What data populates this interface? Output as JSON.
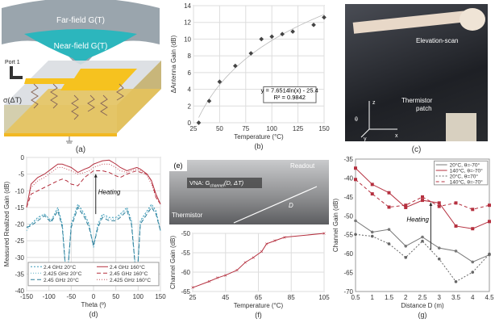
{
  "panel_a": {
    "far_field": "Far-field G(T)",
    "near_field": "Near-field G(T)",
    "port": "Port 1",
    "sigma": "σ(ΔT)",
    "caption": "(a)"
  },
  "panel_c": {
    "elevation": "Elevation-scan",
    "thermistor": "Thermistor",
    "patch": "patch",
    "axes": {
      "z": "z",
      "x": "x",
      "y": "y",
      "theta": "θ"
    },
    "caption": "(c)"
  },
  "panel_e": {
    "label": "(e)",
    "vna": "VNA: G",
    "vna_sub": "channel",
    "vna_args": "(D, ΔT)",
    "readout": "Readout",
    "distance": "D",
    "thermistor": "Thermistor"
  },
  "chart_data": [
    {
      "id": "b",
      "type": "scatter",
      "caption": "(b)",
      "xlabel": "Temperature (°C)",
      "ylabel": "ΔAntenna Gain (dB)",
      "xlim": [
        25,
        150
      ],
      "ylim": [
        0,
        14
      ],
      "xticks": [
        25,
        50,
        75,
        100,
        125,
        150
      ],
      "yticks": [
        0,
        2,
        4,
        6,
        8,
        10,
        12,
        14
      ],
      "grid": true,
      "x": [
        30,
        40,
        50,
        65,
        80,
        90,
        100,
        110,
        120,
        140,
        150
      ],
      "y": [
        0,
        2.6,
        4.9,
        6.8,
        8.3,
        10.0,
        10.3,
        10.6,
        10.9,
        11.7,
        12.6
      ],
      "trendline": {
        "a": 7.6514,
        "b": -25.4,
        "equation": "y = 7.6514ln(x) - 25.4",
        "r2": "R² = 0.9842"
      }
    },
    {
      "id": "d",
      "type": "line",
      "caption": "(d)",
      "xlabel": "Theta (º)",
      "ylabel": "Measured Realized Gain (dB)",
      "xlim": [
        -150,
        150
      ],
      "ylim": [
        -40,
        0
      ],
      "xticks": [
        -150,
        -100,
        -50,
        0,
        50,
        100,
        150
      ],
      "yticks": [
        0,
        -5,
        -10,
        -15,
        -20,
        -25,
        -30,
        -35,
        -40
      ],
      "grid": true,
      "annotation": "Heating",
      "legend": "bottom",
      "x": [
        -150,
        -140,
        -125,
        -110,
        -95,
        -80,
        -70,
        -60,
        -50,
        -35,
        -20,
        -10,
        0,
        10,
        20,
        35,
        50,
        60,
        75,
        85,
        97,
        105,
        120,
        130,
        140,
        150
      ],
      "series": [
        {
          "name": "2.4 GHz 20°C",
          "color": "#3a9ab8",
          "dash": "2,2",
          "values": [
            -21,
            -20,
            -18,
            -17,
            -19,
            -15,
            -20,
            -38,
            -20,
            -14,
            -17,
            -20,
            -27,
            -20,
            -17,
            -18,
            -18,
            -17,
            -15,
            -19,
            -38,
            -19,
            -16,
            -14,
            -16,
            -22
          ]
        },
        {
          "name": "2.425 GHz 20°C",
          "color": "#5fb0c8",
          "dash": "1,2",
          "values": [
            -22,
            -20,
            -18.5,
            -17,
            -19,
            -15.5,
            -20.5,
            -38,
            -20.5,
            -14.5,
            -17.5,
            -20.5,
            -26,
            -20.5,
            -17.5,
            -18.5,
            -18.5,
            -17.5,
            -15.5,
            -19.5,
            -38,
            -19.5,
            -16.5,
            -14.5,
            -16.5,
            -22
          ]
        },
        {
          "name": "2.45 GHz 20°C",
          "color": "#2f7f9a",
          "dash": "5,3",
          "values": [
            -21,
            -20.5,
            -19,
            -17.5,
            -19.5,
            -16,
            -21,
            -38,
            -21,
            -15,
            -18,
            -21,
            -26.5,
            -21,
            -18,
            -19,
            -19,
            -18,
            -16,
            -20,
            -38,
            -20,
            -17,
            -15,
            -17,
            -22
          ]
        },
        {
          "name": "2.4 GHz 160°C",
          "color": "#b5303f",
          "dash": "",
          "values": [
            -15,
            -8,
            -6,
            -5,
            -3.5,
            -2,
            -2,
            -2.5,
            -3,
            -4.5,
            -3.5,
            -3,
            -2,
            -1.5,
            -1,
            -0.8,
            -2,
            -3,
            -4,
            -3.5,
            -3,
            -3.5,
            -5,
            -7,
            -11,
            -14
          ]
        },
        {
          "name": "2.45 GHz 160°C",
          "color": "#b5303f",
          "dash": "5,3",
          "values": [
            -15,
            -11,
            -10,
            -9,
            -8,
            -7,
            -6.5,
            -7,
            -8,
            -8.5,
            -6,
            -5,
            -4,
            -4,
            -4,
            -4.5,
            -5.5,
            -6,
            -5,
            -4.5,
            -4,
            -4.5,
            -5,
            -7,
            -12,
            -14
          ]
        },
        {
          "name": "2.425 GHz 160°C",
          "color": "#c0505c",
          "dash": "1,2",
          "values": [
            -15,
            -9,
            -7,
            -6,
            -4.5,
            -3,
            -3,
            -3.5,
            -4,
            -5,
            -4.5,
            -4,
            -3,
            -2.5,
            -2,
            -2,
            -3,
            -4,
            -4.5,
            -4,
            -3.5,
            -4,
            -5.5,
            -8,
            -12,
            -14
          ]
        }
      ]
    },
    {
      "id": "f",
      "type": "line",
      "caption": "(f)",
      "xlabel": "Temperature (°C)",
      "ylabel": "Channel Gain (dB)",
      "xlim": [
        25,
        105
      ],
      "ylim": [
        -65,
        -50
      ],
      "xticks": [
        25,
        45,
        65,
        85,
        105
      ],
      "yticks": [
        -50,
        -55,
        -60,
        -65
      ],
      "grid": true,
      "x": [
        25,
        35,
        40,
        45,
        52,
        57,
        62,
        67,
        70,
        75,
        81,
        105
      ],
      "series": [
        {
          "color": "#b5303f",
          "values": [
            -64,
            -62.4,
            -61.5,
            -60.8,
            -59.5,
            -57.5,
            -56.2,
            -54.7,
            -52.7,
            -51.9,
            -51,
            -50
          ]
        }
      ]
    },
    {
      "id": "g",
      "type": "line",
      "caption": "(g)",
      "xlabel": "Distance D (m)",
      "ylabel": "Channel Gain (dB)",
      "xlim": [
        0.5,
        4.5
      ],
      "ylim": [
        -70,
        -35
      ],
      "xticks": [
        0.5,
        1.5,
        2.5,
        3.5,
        4.5
      ],
      "xtick_labels": [
        "0.5",
        "1",
        "1.5",
        "2",
        "2.5",
        "3",
        "3.5",
        "4",
        "4.5"
      ],
      "yticks": [
        -35,
        -40,
        -45,
        -50,
        -55,
        -60,
        -65,
        -70
      ],
      "grid": false,
      "annotation": "Heating",
      "legend": "top-right",
      "x": [
        0.5,
        1,
        1.5,
        2,
        2.5,
        3,
        3.5,
        4,
        4.5
      ],
      "series": [
        {
          "name": "20°C, θ=-70°",
          "color": "#777777",
          "dash": "",
          "values": [
            -51.3,
            -54.3,
            -53.6,
            -58,
            -55.6,
            -58.5,
            -59.3,
            -62.2,
            -60.3
          ]
        },
        {
          "name": "140°C, θ=-70°",
          "color": "#b5303f",
          "dash": "",
          "values": [
            -37.4,
            -41.7,
            -43.9,
            -47.8,
            -45.9,
            -46.6,
            -52.7,
            -53.4,
            -51.5
          ]
        },
        {
          "name": "20°C, θ=70°",
          "color": "#666666",
          "dash": "2,2",
          "values": [
            -54.9,
            -55.4,
            -57.4,
            -61,
            -56.7,
            -61.4,
            -67.4,
            -64.9,
            -60.1
          ]
        },
        {
          "name": "140°C, θ=-70°",
          "color": "#b5303f",
          "dash": "4,3",
          "values": [
            -40.4,
            -44.2,
            -47.7,
            -47.2,
            -45,
            -47.5,
            -46.6,
            -48.3,
            -47.2
          ]
        }
      ]
    }
  ]
}
